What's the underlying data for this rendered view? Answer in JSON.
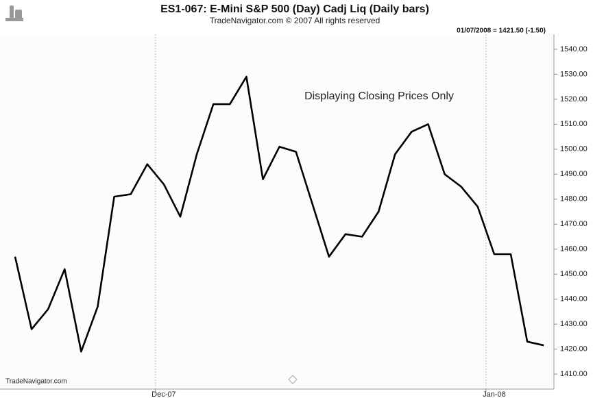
{
  "chart_data": {
    "type": "line",
    "title": "ES1-067:  E-Mini S&P 500 (Day) Cadj Liq  (Daily bars)",
    "subtitle": "TradeNavigator.com © 2007 All rights reserved",
    "info": "01/07/2008 = 1421.50 (-1.50)",
    "annotation": "Displaying Closing Prices Only",
    "watermark": "TradeNavigator.com",
    "categories": [
      null,
      null,
      null,
      null,
      null,
      null,
      null,
      null,
      null,
      "Dec-07",
      null,
      null,
      null,
      null,
      null,
      null,
      null,
      null,
      null,
      null,
      null,
      null,
      null,
      null,
      null,
      null,
      null,
      null,
      null,
      "Jan-08",
      null,
      null,
      null
    ],
    "series": [
      {
        "name": "Close",
        "color": "#000000",
        "values": [
          1457,
          1428,
          1436,
          1452,
          1419,
          1437,
          1481,
          1482,
          1494,
          1486,
          1473,
          1498,
          1518,
          1518,
          1529,
          1488,
          1501,
          1499,
          1478,
          1457,
          1466,
          1465,
          1475,
          1498,
          1507,
          1510,
          1490,
          1485,
          1477,
          1458,
          1458,
          1423,
          1421.5
        ]
      }
    ],
    "ylim": [
      1404,
      1546
    ],
    "yticks": [
      {
        "value": 1410,
        "label": "1410.00"
      },
      {
        "value": 1420,
        "label": "1420.00"
      },
      {
        "value": 1430,
        "label": "1430.00"
      },
      {
        "value": 1440,
        "label": "1440.00"
      },
      {
        "value": 1450,
        "label": "1450.00"
      },
      {
        "value": 1460,
        "label": "1460.00"
      },
      {
        "value": 1470,
        "label": "1470.00"
      },
      {
        "value": 1480,
        "label": "1480.00"
      },
      {
        "value": 1490,
        "label": "1490.00"
      },
      {
        "value": 1500,
        "label": "1500.00"
      },
      {
        "value": 1510,
        "label": "1510.00"
      },
      {
        "value": 1520,
        "label": "1520.00"
      },
      {
        "value": 1530,
        "label": "1530.00"
      },
      {
        "value": 1540,
        "label": "1540.00"
      }
    ],
    "grid": true
  }
}
